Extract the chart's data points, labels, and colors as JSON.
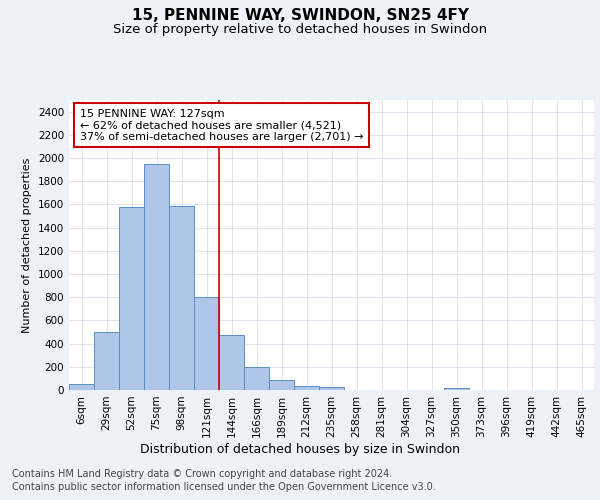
{
  "title": "15, PENNINE WAY, SWINDON, SN25 4FY",
  "subtitle": "Size of property relative to detached houses in Swindon",
  "xlabel": "Distribution of detached houses by size in Swindon",
  "ylabel": "Number of detached properties",
  "categories": [
    "6sqm",
    "29sqm",
    "52sqm",
    "75sqm",
    "98sqm",
    "121sqm",
    "144sqm",
    "166sqm",
    "189sqm",
    "212sqm",
    "235sqm",
    "258sqm",
    "281sqm",
    "304sqm",
    "327sqm",
    "350sqm",
    "373sqm",
    "396sqm",
    "419sqm",
    "442sqm",
    "465sqm"
  ],
  "values": [
    55,
    500,
    1580,
    1950,
    1590,
    800,
    475,
    195,
    90,
    35,
    25,
    0,
    0,
    0,
    0,
    20,
    0,
    0,
    0,
    0,
    0
  ],
  "bar_color": "#aec6e8",
  "bar_edge_color": "#5b8ec4",
  "vline_x_index": 5,
  "vline_color": "#cc0000",
  "annotation_text": "15 PENNINE WAY: 127sqm\n← 62% of detached houses are smaller (4,521)\n37% of semi-detached houses are larger (2,701) →",
  "annotation_box_color": "#cc0000",
  "annotation_text_color": "#000000",
  "ylim": [
    0,
    2500
  ],
  "yticks": [
    0,
    200,
    400,
    600,
    800,
    1000,
    1200,
    1400,
    1600,
    1800,
    2000,
    2200,
    2400
  ],
  "bg_color": "#edf1f8",
  "plot_bg_color": "#ffffff",
  "footer_line1": "Contains HM Land Registry data © Crown copyright and database right 2024.",
  "footer_line2": "Contains public sector information licensed under the Open Government Licence v3.0.",
  "title_fontsize": 11,
  "subtitle_fontsize": 9.5,
  "xlabel_fontsize": 9,
  "ylabel_fontsize": 8,
  "tick_fontsize": 7.5,
  "footer_fontsize": 7
}
